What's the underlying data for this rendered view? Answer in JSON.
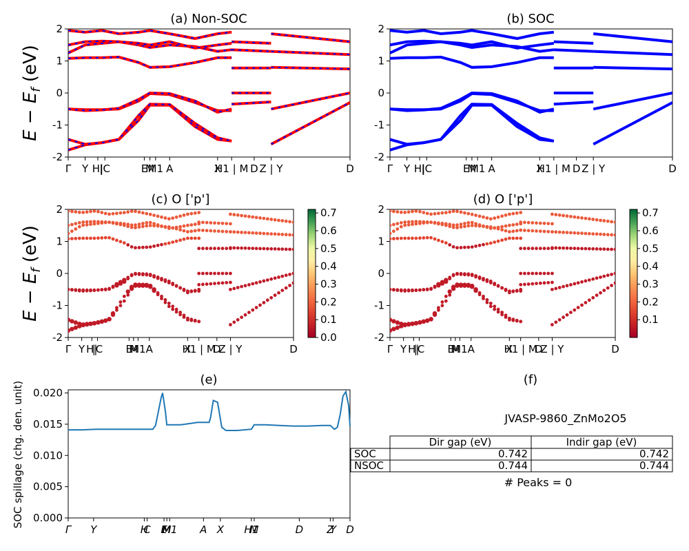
{
  "chart_data": [
    {
      "id": "a",
      "type": "line",
      "title": "(a) Non-SOC",
      "ylabel": "E − E_f (eV)",
      "ylim": [
        -2,
        2
      ],
      "xlim": [
        0,
        1
      ],
      "yticks": [
        -2,
        -1,
        0,
        1,
        2
      ],
      "kpath_labels": [
        "Γ",
        "Y",
        "H",
        "H",
        "C",
        "E",
        "M",
        "M",
        "A",
        "X",
        "H",
        "M",
        "D",
        "Z",
        "Y",
        "D"
      ],
      "kpath_label_text": [
        "Γ",
        "Y",
        "H|",
        "|C",
        "E",
        "M",
        "M1",
        "A",
        "X",
        "H1 | M",
        "D",
        "Z | Y",
        "D"
      ],
      "kpath_positions": [
        0.0,
        0.06,
        0.105,
        0.13,
        0.27,
        0.29,
        0.31,
        0.36,
        0.53,
        0.58,
        0.66,
        0.72,
        1.0
      ],
      "line_color": "#ff0000",
      "dash_color": "#0000ff",
      "series": [
        {
          "x": [
            0,
            0.06,
            0.12,
            0.18,
            0.25,
            0.29,
            0.36,
            0.45,
            0.53,
            0.58
          ],
          "y": [
            -1.78,
            -1.62,
            -1.55,
            -1.45,
            -0.85,
            -0.38,
            -0.38,
            -1.05,
            -1.45,
            -1.5
          ]
        },
        {
          "x": [
            0,
            0.06,
            0.12,
            0.18,
            0.25,
            0.29,
            0.36,
            0.45,
            0.53,
            0.58
          ],
          "y": [
            -1.45,
            -1.6,
            -1.55,
            -1.45,
            -0.7,
            -0.35,
            -0.36,
            -0.95,
            -1.4,
            -1.5
          ]
        },
        {
          "x": [
            0,
            0.06,
            0.12,
            0.18,
            0.25,
            0.29,
            0.36,
            0.45,
            0.53,
            0.58
          ],
          "y": [
            -0.5,
            -0.52,
            -0.52,
            -0.5,
            -0.25,
            -0.02,
            -0.05,
            -0.3,
            -0.55,
            -0.55
          ]
        },
        {
          "x": [
            0,
            0.06,
            0.12,
            0.18,
            0.25,
            0.29,
            0.36,
            0.45,
            0.53,
            0.58
          ],
          "y": [
            -0.5,
            -0.55,
            -0.53,
            -0.48,
            -0.2,
            0.0,
            -0.02,
            -0.25,
            -0.6,
            -0.5
          ]
        },
        {
          "x": [
            0,
            0.06,
            0.12,
            0.18,
            0.25,
            0.29,
            0.36,
            0.45,
            0.53,
            0.58
          ],
          "y": [
            1.08,
            1.1,
            1.1,
            1.12,
            0.95,
            0.8,
            0.82,
            0.95,
            1.1,
            1.1
          ]
        },
        {
          "x": [
            0,
            0.06,
            0.12,
            0.18,
            0.25,
            0.29,
            0.36,
            0.45,
            0.53,
            0.58
          ],
          "y": [
            1.25,
            1.5,
            1.55,
            1.6,
            1.5,
            1.42,
            1.5,
            1.45,
            1.3,
            1.35
          ]
        },
        {
          "x": [
            0,
            0.06,
            0.12,
            0.18,
            0.25,
            0.29,
            0.36,
            0.45,
            0.53,
            0.58
          ],
          "y": [
            1.5,
            1.6,
            1.62,
            1.6,
            1.55,
            1.5,
            1.6,
            1.4,
            1.5,
            1.55
          ]
        },
        {
          "x": [
            0,
            0.06,
            0.12,
            0.18,
            0.25,
            0.29,
            0.36,
            0.45,
            0.53,
            0.58
          ],
          "y": [
            1.95,
            1.9,
            1.95,
            1.85,
            1.9,
            1.95,
            1.85,
            1.7,
            1.85,
            1.9
          ]
        },
        {
          "x": [
            0.58,
            0.72
          ],
          "y": [
            0.0,
            0.0
          ]
        },
        {
          "x": [
            0.58,
            0.72
          ],
          "y": [
            -0.35,
            -0.28
          ]
        },
        {
          "x": [
            0.58,
            0.72
          ],
          "y": [
            0.78,
            0.78
          ]
        },
        {
          "x": [
            0.58,
            0.72
          ],
          "y": [
            1.35,
            1.3
          ]
        },
        {
          "x": [
            0.58,
            0.72
          ],
          "y": [
            1.6,
            1.55
          ]
        },
        {
          "x": [
            0.72,
            1.0
          ],
          "y": [
            -1.6,
            -0.3
          ]
        },
        {
          "x": [
            0.72,
            1.0
          ],
          "y": [
            -0.5,
            0.0
          ]
        },
        {
          "x": [
            0.72,
            1.0
          ],
          "y": [
            0.8,
            0.75
          ]
        },
        {
          "x": [
            0.72,
            1.0
          ],
          "y": [
            1.3,
            1.2
          ]
        },
        {
          "x": [
            0.72,
            1.0
          ],
          "y": [
            1.85,
            1.6
          ]
        }
      ]
    },
    {
      "id": "b",
      "type": "line",
      "title": "(b) SOC",
      "ylim": [
        -2,
        2
      ],
      "line_color": "#0000ff",
      "kpath_label_text": [
        "Γ",
        "Y",
        "H|",
        "|C",
        "E",
        "M",
        "M1",
        "A",
        "X",
        "H1 | M",
        "D",
        "Z | Y",
        "D"
      ],
      "kpath_positions": [
        0.0,
        0.06,
        0.105,
        0.13,
        0.27,
        0.29,
        0.31,
        0.36,
        0.53,
        0.58,
        0.66,
        0.72,
        1.0
      ]
    },
    {
      "id": "c",
      "type": "scatter",
      "title": "(c)  O ['p']",
      "ylabel": "E − E_f (eV)",
      "ylim": [
        -2,
        2
      ],
      "colorbar": {
        "ticks": [
          "0.0",
          "0.1",
          "0.2",
          "0.3",
          "0.4",
          "0.5",
          "0.6",
          "0.7"
        ],
        "min": 0.0,
        "max": 0.72,
        "cmap": "RdYlGn"
      },
      "kpath_label_text": [
        "Γ",
        "Y",
        "H|",
        "|C",
        "E",
        "M",
        "M1",
        "A",
        "X",
        "H1 | M",
        "D",
        "Z | Y",
        "D"
      ],
      "kpath_positions": [
        0.0,
        0.06,
        0.105,
        0.13,
        0.27,
        0.29,
        0.31,
        0.36,
        0.53,
        0.58,
        0.66,
        0.72,
        1.0
      ]
    },
    {
      "id": "d",
      "type": "scatter",
      "title": "(d) O ['p']",
      "ylim": [
        -2,
        2
      ],
      "colorbar": {
        "ticks": [
          "0.1",
          "0.2",
          "0.3",
          "0.4",
          "0.5",
          "0.6",
          "0.7"
        ],
        "min": 0.0,
        "max": 0.72,
        "cmap": "RdYlGn"
      },
      "kpath_label_text": [
        "Γ",
        "Y",
        "H|",
        "|C",
        "E",
        "M",
        "M1",
        "A",
        "X",
        "H1 | M",
        "D",
        "Z | Y",
        "D"
      ],
      "kpath_positions": [
        0.0,
        0.06,
        0.105,
        0.13,
        0.27,
        0.29,
        0.31,
        0.36,
        0.53,
        0.58,
        0.66,
        0.72,
        1.0
      ]
    },
    {
      "id": "e",
      "type": "line",
      "title": "(e)",
      "ylabel": "SOC spillage (chg. den. unit)",
      "ylim": [
        0.0,
        0.0205
      ],
      "yticks": [
        "0.000",
        "0.005",
        "0.010",
        "0.015",
        "0.020"
      ],
      "line_color": "#1f77b4",
      "kpath_label_text": [
        "Γ",
        "Y",
        "H",
        "C",
        "E",
        "M",
        "M1",
        "A",
        "X",
        "H1",
        "M",
        "D",
        "Z",
        "Y",
        "D"
      ],
      "kpath_positions": [
        0.0,
        0.09,
        0.27,
        0.28,
        0.34,
        0.35,
        0.36,
        0.48,
        0.54,
        0.65,
        0.66,
        0.82,
        0.93,
        0.94,
        1.0
      ],
      "x": [
        0,
        0.05,
        0.1,
        0.15,
        0.2,
        0.25,
        0.28,
        0.3,
        0.31,
        0.33,
        0.335,
        0.345,
        0.35,
        0.4,
        0.43,
        0.46,
        0.48,
        0.5,
        0.505,
        0.515,
        0.53,
        0.545,
        0.56,
        0.6,
        0.65,
        0.66,
        0.7,
        0.75,
        0.8,
        0.85,
        0.9,
        0.93,
        0.945,
        0.955,
        0.965,
        0.975,
        0.985,
        0.995,
        1.0
      ],
      "y": [
        0.0141,
        0.0141,
        0.0142,
        0.0142,
        0.0142,
        0.0142,
        0.0142,
        0.0142,
        0.0148,
        0.0193,
        0.02,
        0.017,
        0.0149,
        0.0149,
        0.0151,
        0.0153,
        0.0153,
        0.0153,
        0.016,
        0.0188,
        0.0185,
        0.0145,
        0.014,
        0.014,
        0.0142,
        0.0149,
        0.0149,
        0.0148,
        0.0147,
        0.0147,
        0.0148,
        0.0148,
        0.0142,
        0.0145,
        0.0165,
        0.0195,
        0.0202,
        0.018,
        0.0147
      ]
    }
  ],
  "panel_f": {
    "title": "(f)",
    "material": "JVASP-9860_ZnMo2O5",
    "table": {
      "headers": [
        "Dir gap (eV)",
        "Indir gap (eV)"
      ],
      "rows": [
        {
          "label": "SOC",
          "dir": "0.742",
          "indir": "0.742"
        },
        {
          "label": "NSOC",
          "dir": "0.744",
          "indir": "0.744"
        }
      ]
    },
    "peaks": "# Peaks = 0"
  }
}
